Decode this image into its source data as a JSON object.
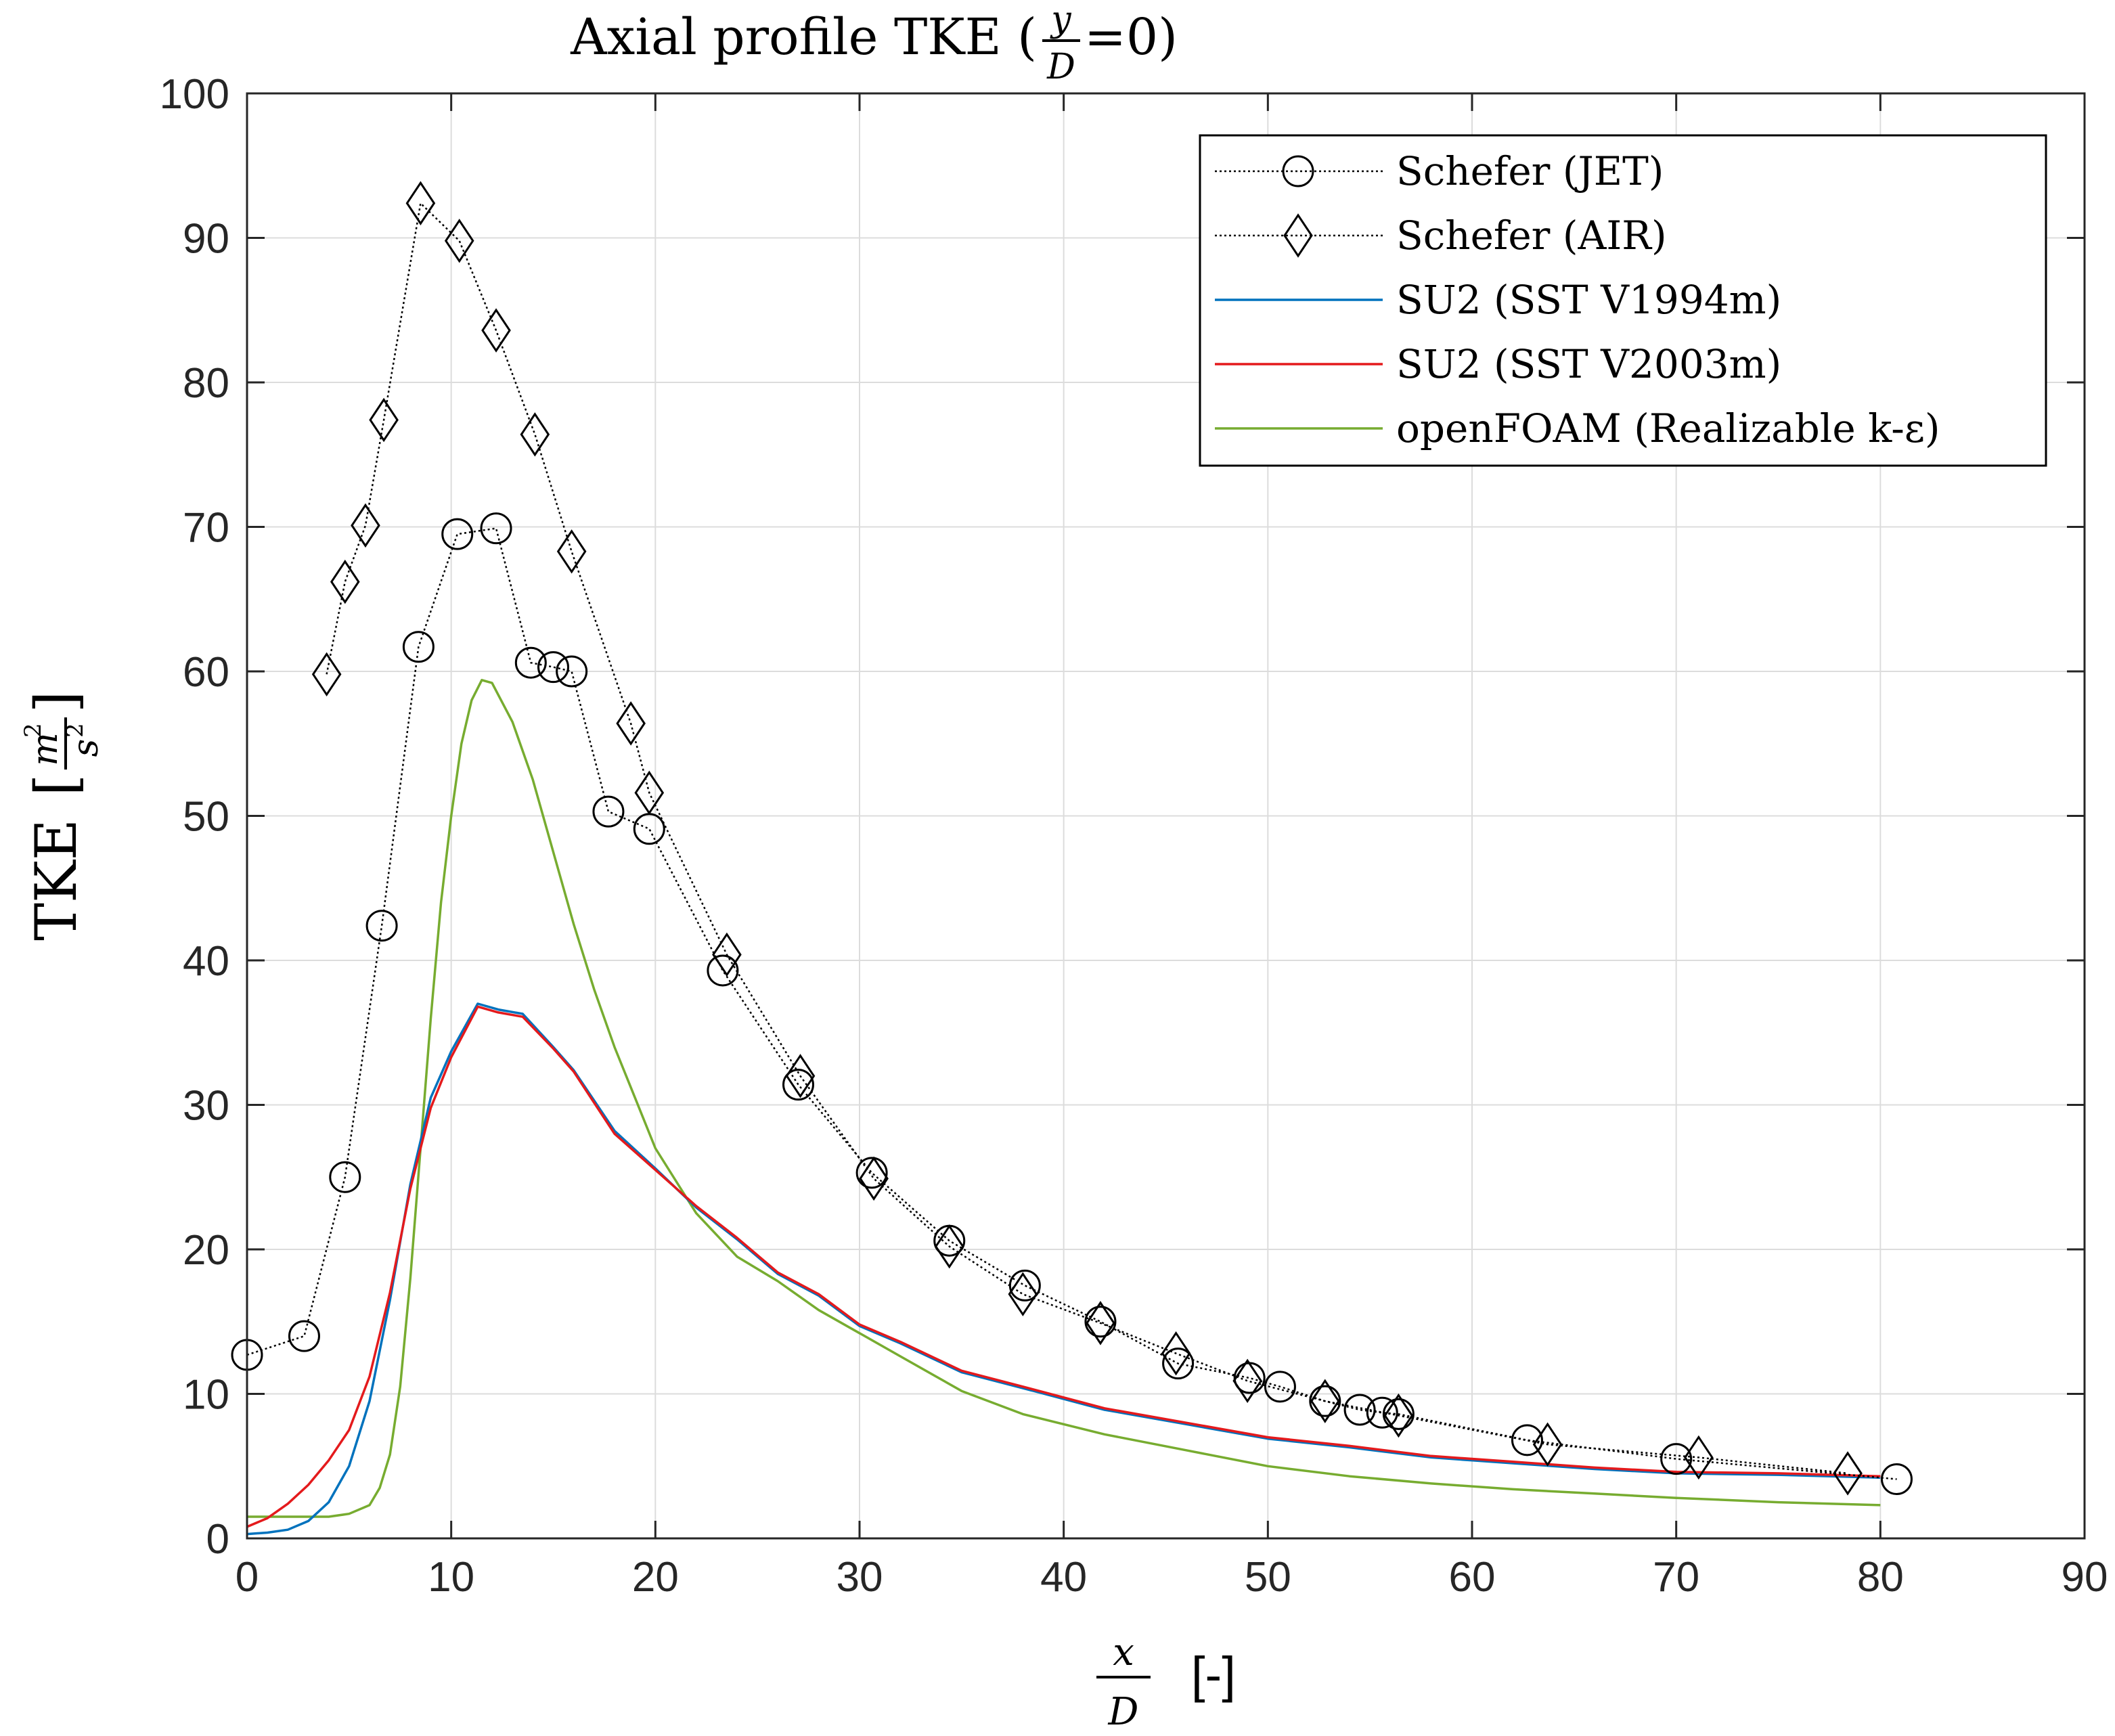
{
  "chart_data": {
    "type": "line",
    "title_prefix": "Axial profile TKE (",
    "title_frac_num": "y",
    "title_frac_den": "D",
    "title_suffix": "=0)",
    "ylabel_main": "TKE",
    "ylabel_frac_num": "m",
    "ylabel_frac_num_sup": "2",
    "ylabel_frac_den": "s",
    "ylabel_frac_den_sup": "2",
    "xlabel_frac_num": "x",
    "xlabel_frac_den": "D",
    "xlabel_unit": "[-]",
    "xlim": [
      0,
      90
    ],
    "ylim": [
      0,
      100
    ],
    "xticks": [
      0,
      10,
      20,
      30,
      40,
      50,
      60,
      70,
      80,
      90
    ],
    "yticks": [
      0,
      10,
      20,
      30,
      40,
      50,
      60,
      70,
      80,
      90,
      100
    ],
    "grid": true,
    "legend_position": "top-right",
    "series": [
      {
        "name": "Schefer (JET)",
        "color": "#000000",
        "style": "dotted",
        "marker": "circle",
        "points": [
          [
            0,
            12.7
          ],
          [
            2.8,
            14.0
          ],
          [
            4.8,
            25.0
          ],
          [
            6.6,
            42.4
          ],
          [
            8.4,
            61.7
          ],
          [
            10.3,
            69.5
          ],
          [
            12.2,
            69.9
          ],
          [
            13.9,
            60.6
          ],
          [
            15.0,
            60.3
          ],
          [
            15.9,
            60.0
          ],
          [
            17.7,
            50.3
          ],
          [
            19.7,
            49.1
          ],
          [
            23.3,
            39.3
          ],
          [
            27.0,
            31.4
          ],
          [
            30.6,
            25.3
          ],
          [
            34.4,
            20.6
          ],
          [
            38.1,
            17.5
          ],
          [
            41.8,
            15.0
          ],
          [
            45.6,
            12.1
          ],
          [
            49.1,
            11.1
          ],
          [
            50.6,
            10.5
          ],
          [
            52.8,
            9.5
          ],
          [
            54.5,
            8.9
          ],
          [
            55.6,
            8.7
          ],
          [
            56.4,
            8.6
          ],
          [
            62.7,
            6.8
          ],
          [
            70.0,
            5.5
          ],
          [
            80.8,
            4.1
          ]
        ]
      },
      {
        "name": "Schefer (AIR)",
        "color": "#000000",
        "style": "dotted",
        "marker": "diamond",
        "points": [
          [
            3.9,
            59.8
          ],
          [
            4.8,
            66.2
          ],
          [
            5.8,
            70.1
          ],
          [
            6.7,
            77.4
          ],
          [
            8.5,
            92.4
          ],
          [
            10.4,
            89.8
          ],
          [
            12.2,
            83.6
          ],
          [
            14.1,
            76.4
          ],
          [
            15.9,
            68.3
          ],
          [
            18.8,
            56.4
          ],
          [
            19.7,
            51.6
          ],
          [
            23.5,
            40.4
          ],
          [
            27.1,
            32.0
          ],
          [
            30.7,
            24.9
          ],
          [
            34.4,
            20.2
          ],
          [
            38.0,
            16.9
          ],
          [
            41.8,
            14.9
          ],
          [
            45.5,
            12.8
          ],
          [
            49.0,
            10.9
          ],
          [
            52.8,
            9.5
          ],
          [
            56.4,
            8.5
          ],
          [
            63.7,
            6.5
          ],
          [
            71.1,
            5.6
          ],
          [
            78.4,
            4.5
          ]
        ]
      },
      {
        "name": "SU2 (SST V1994m)",
        "color": "#0072BD",
        "style": "solid",
        "marker": "none",
        "points": [
          [
            0,
            0.3
          ],
          [
            1,
            0.4
          ],
          [
            2,
            0.6
          ],
          [
            3,
            1.2
          ],
          [
            4,
            2.5
          ],
          [
            5,
            5.0
          ],
          [
            6,
            9.5
          ],
          [
            7,
            16.5
          ],
          [
            8,
            24.5
          ],
          [
            9,
            30.5
          ],
          [
            10,
            33.7
          ],
          [
            11.3,
            37.0
          ],
          [
            12.3,
            36.6
          ],
          [
            13.5,
            36.3
          ],
          [
            15,
            34.0
          ],
          [
            16,
            32.4
          ],
          [
            18,
            28.2
          ],
          [
            20,
            25.6
          ],
          [
            22,
            22.9
          ],
          [
            24,
            20.7
          ],
          [
            26,
            18.3
          ],
          [
            28,
            16.8
          ],
          [
            30,
            14.7
          ],
          [
            32,
            13.5
          ],
          [
            35,
            11.5
          ],
          [
            38,
            10.4
          ],
          [
            42,
            8.9
          ],
          [
            46,
            7.9
          ],
          [
            50,
            6.9
          ],
          [
            54,
            6.3
          ],
          [
            58,
            5.6
          ],
          [
            62,
            5.2
          ],
          [
            66,
            4.8
          ],
          [
            70,
            4.5
          ],
          [
            75,
            4.4
          ],
          [
            80,
            4.2
          ]
        ]
      },
      {
        "name": "SU2 (SST V2003m)",
        "color": "#E41A1C",
        "style": "solid",
        "marker": "none",
        "points": [
          [
            0,
            0.8
          ],
          [
            1,
            1.4
          ],
          [
            2,
            2.4
          ],
          [
            3,
            3.7
          ],
          [
            4,
            5.4
          ],
          [
            5,
            7.5
          ],
          [
            6,
            11.2
          ],
          [
            7,
            17.0
          ],
          [
            8,
            24.2
          ],
          [
            9,
            29.8
          ],
          [
            10,
            33.3
          ],
          [
            11.3,
            36.8
          ],
          [
            12.3,
            36.4
          ],
          [
            13.5,
            36.1
          ],
          [
            15,
            33.9
          ],
          [
            16,
            32.3
          ],
          [
            18,
            28.0
          ],
          [
            20,
            25.5
          ],
          [
            22,
            23.0
          ],
          [
            24,
            20.8
          ],
          [
            26,
            18.4
          ],
          [
            28,
            16.9
          ],
          [
            30,
            14.8
          ],
          [
            32,
            13.6
          ],
          [
            35,
            11.6
          ],
          [
            38,
            10.5
          ],
          [
            42,
            9.0
          ],
          [
            46,
            8.0
          ],
          [
            50,
            7.0
          ],
          [
            54,
            6.4
          ],
          [
            58,
            5.7
          ],
          [
            62,
            5.3
          ],
          [
            66,
            4.9
          ],
          [
            70,
            4.6
          ],
          [
            75,
            4.5
          ],
          [
            80,
            4.3
          ]
        ]
      },
      {
        "name": "openFOAM (Realizable k-ε)",
        "color": "#77AC30",
        "style": "solid",
        "marker": "none",
        "points": [
          [
            0,
            1.5
          ],
          [
            2,
            1.5
          ],
          [
            4,
            1.5
          ],
          [
            5,
            1.7
          ],
          [
            6,
            2.3
          ],
          [
            6.5,
            3.5
          ],
          [
            7,
            5.8
          ],
          [
            7.5,
            10.5
          ],
          [
            8,
            18.0
          ],
          [
            8.5,
            27.0
          ],
          [
            9,
            36.0
          ],
          [
            9.5,
            44.0
          ],
          [
            10,
            50.0
          ],
          [
            10.5,
            55.0
          ],
          [
            11,
            58.0
          ],
          [
            11.5,
            59.4
          ],
          [
            12,
            59.2
          ],
          [
            13,
            56.5
          ],
          [
            14,
            52.5
          ],
          [
            15,
            47.5
          ],
          [
            16,
            42.5
          ],
          [
            17,
            38.0
          ],
          [
            18,
            34.0
          ],
          [
            19,
            30.5
          ],
          [
            20,
            27.0
          ],
          [
            22,
            22.5
          ],
          [
            24,
            19.5
          ],
          [
            26,
            17.8
          ],
          [
            28,
            15.8
          ],
          [
            30,
            14.2
          ],
          [
            32,
            12.6
          ],
          [
            35,
            10.2
          ],
          [
            38,
            8.6
          ],
          [
            42,
            7.2
          ],
          [
            46,
            6.1
          ],
          [
            50,
            5.0
          ],
          [
            54,
            4.3
          ],
          [
            58,
            3.8
          ],
          [
            62,
            3.4
          ],
          [
            66,
            3.1
          ],
          [
            70,
            2.8
          ],
          [
            75,
            2.5
          ],
          [
            80,
            2.3
          ]
        ]
      }
    ]
  }
}
